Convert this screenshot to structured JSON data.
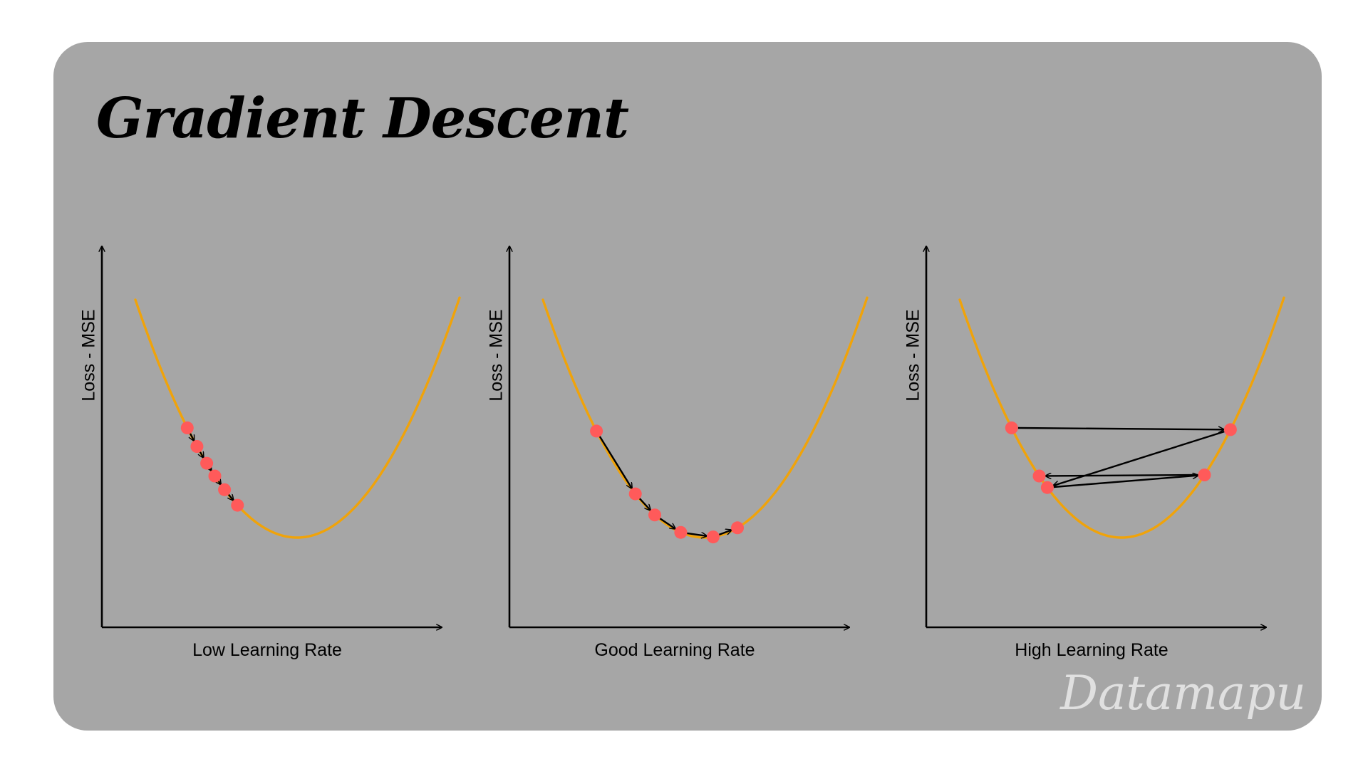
{
  "title": "Gradient Descent",
  "watermark": "Datamapu",
  "colors": {
    "background": "#a6a6a6",
    "curve": "#f0a30a",
    "points": "#ff5a5a",
    "arrows": "#000000"
  },
  "panels": [
    {
      "ylabel": "Loss - MSE",
      "xlabel": "Low Learning Rate",
      "steps_t": [
        0.16,
        0.19,
        0.22,
        0.245,
        0.275,
        0.315
      ]
    },
    {
      "ylabel": "Loss - MSE",
      "xlabel": "Good Learning Rate",
      "steps_t": [
        0.165,
        0.285,
        0.345,
        0.425,
        0.525,
        0.6
      ]
    },
    {
      "ylabel": "Loss - MSE",
      "xlabel": "High Learning Rate",
      "steps_t": [
        0.16,
        0.835,
        0.27,
        0.755,
        0.245
      ]
    }
  ]
}
